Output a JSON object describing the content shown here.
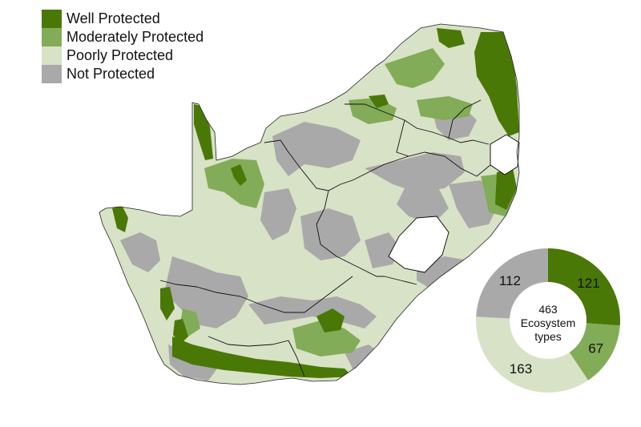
{
  "legend": [
    {
      "label": "Well Protected",
      "color": "#4a7806"
    },
    {
      "label": "Moderately Protected",
      "color": "#82ac57"
    },
    {
      "label": "Poorly Protected",
      "color": "#d8e2c6"
    },
    {
      "label": "Not Protected",
      "color": "#a9a9a9"
    }
  ],
  "chart_data": {
    "type": "pie",
    "center_text": [
      "463",
      "Ecosystem",
      "types"
    ],
    "slices": [
      {
        "label": "Well Protected",
        "value": 121,
        "display": "121",
        "color": "#4a7806"
      },
      {
        "label": "Moderately Protected",
        "value": 67,
        "display": "67",
        "color": "#82ac57"
      },
      {
        "label": "Poorly Protected",
        "value": 163,
        "display": "163",
        "color": "#d8e2c6"
      },
      {
        "label": "Not Protected",
        "value": 112,
        "display": "112",
        "color": "#a9a9a9"
      }
    ]
  }
}
